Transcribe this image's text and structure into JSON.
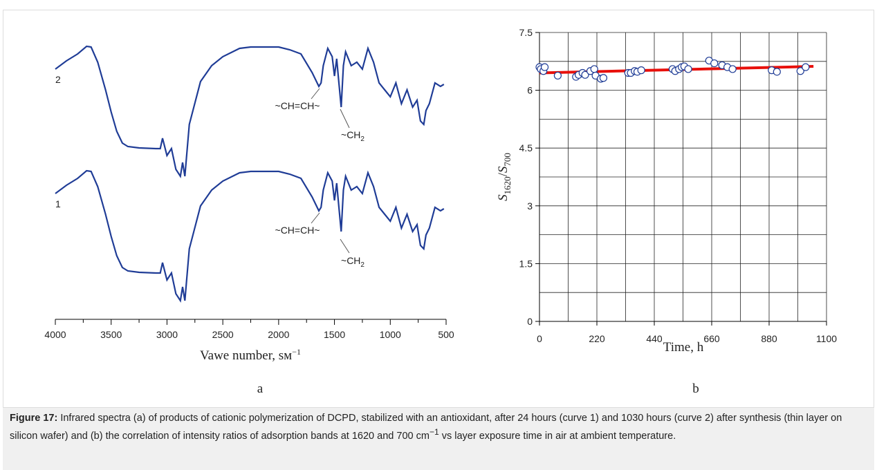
{
  "chart_data": [
    {
      "type": "line",
      "panel": "a",
      "xlabel": {
        "text": "Vawe number, sм",
        "sup": "−1"
      },
      "x": [
        4000,
        3900,
        3800,
        3720,
        3680,
        3620,
        3550,
        3500,
        3450,
        3400,
        3350,
        3250,
        3100,
        3060,
        3040,
        3000,
        2960,
        2920,
        2880,
        2860,
        2840,
        2800,
        2700,
        2600,
        2500,
        2350,
        2250,
        2100,
        2000,
        1900,
        1800,
        1700,
        1640,
        1620,
        1600,
        1560,
        1520,
        1500,
        1480,
        1460,
        1440,
        1420,
        1400,
        1350,
        1300,
        1250,
        1200,
        1150,
        1100,
        1050,
        1000,
        950,
        900,
        850,
        800,
        760,
        730,
        700,
        680,
        650,
        600,
        550,
        520
      ],
      "series": [
        {
          "name": "2",
          "color": "#1f3c96",
          "values": [
            360,
            372,
            382,
            393,
            392,
            370,
            330,
            298,
            270,
            253,
            248,
            246,
            245,
            245,
            260,
            235,
            245,
            215,
            205,
            225,
            205,
            280,
            342,
            365,
            378,
            390,
            392,
            392,
            392,
            388,
            382,
            355,
            335,
            340,
            365,
            390,
            378,
            350,
            375,
            340,
            305,
            365,
            385,
            365,
            370,
            360,
            390,
            370,
            340,
            330,
            320,
            340,
            310,
            330,
            305,
            315,
            285,
            280,
            300,
            310,
            340,
            335,
            338
          ]
        },
        {
          "name": "1",
          "color": "#1f3c96",
          "values": [
            180,
            192,
            202,
            213,
            212,
            190,
            150,
            118,
            90,
            73,
            68,
            66,
            65,
            65,
            80,
            55,
            65,
            35,
            25,
            45,
            25,
            100,
            162,
            185,
            198,
            210,
            212,
            212,
            212,
            208,
            202,
            175,
            155,
            160,
            185,
            210,
            198,
            170,
            195,
            160,
            125,
            185,
            205,
            185,
            190,
            180,
            210,
            190,
            160,
            150,
            140,
            160,
            130,
            150,
            125,
            135,
            105,
            100,
            120,
            130,
            160,
            155,
            158
          ]
        }
      ],
      "annotations": [
        {
          "text": "~CH=CH~"
        },
        {
          "text": "~CH",
          "sub": "2"
        },
        {
          "text": "~CH=CH~"
        },
        {
          "text": "~CH",
          "sub": "2"
        }
      ],
      "xlim": [
        4000,
        500
      ],
      "xticks": [
        4000,
        3500,
        3000,
        2500,
        2000,
        1500,
        1000,
        500
      ],
      "xminorticks": [
        3750,
        3250,
        2750,
        2250,
        1750,
        1250,
        750
      ],
      "ylim": [
        0,
        420
      ]
    },
    {
      "type": "scatter",
      "panel": "b",
      "xlabel": "Time, h",
      "ylabel": {
        "parts": [
          "S",
          "1620",
          "/",
          "S",
          "700"
        ]
      },
      "x": [
        0,
        5,
        15,
        20,
        70,
        140,
        150,
        165,
        175,
        195,
        210,
        215,
        235,
        245,
        340,
        350,
        365,
        375,
        390,
        510,
        520,
        535,
        545,
        555,
        570,
        650,
        670,
        700,
        720,
        740,
        890,
        910,
        1000,
        1020
      ],
      "values": [
        6.6,
        6.55,
        6.5,
        6.6,
        6.38,
        6.35,
        6.4,
        6.45,
        6.4,
        6.5,
        6.55,
        6.38,
        6.3,
        6.32,
        6.45,
        6.45,
        6.5,
        6.48,
        6.52,
        6.55,
        6.5,
        6.55,
        6.6,
        6.62,
        6.55,
        6.77,
        6.7,
        6.65,
        6.6,
        6.55,
        6.52,
        6.48,
        6.5,
        6.6
      ],
      "color": "#ffffff",
      "trend": {
        "x": [
          0,
          1050
        ],
        "values": [
          6.45,
          6.62
        ],
        "color": "#e8100b"
      },
      "xlim": [
        0,
        1100
      ],
      "xticks": [
        0,
        220,
        440,
        660,
        880,
        1100
      ],
      "xminorticks": [
        110,
        330,
        550,
        770,
        990
      ],
      "ylim": [
        0,
        7.5
      ],
      "yticks": [
        0,
        1.5,
        3,
        4.5,
        6,
        7.5
      ],
      "yminorticks": [
        0.75,
        2.25,
        3.75,
        5.25,
        6.75
      ],
      "grid": true
    }
  ],
  "caption": {
    "label": "Figure 17:",
    "text": " Infrared spectra (a) of products of cationic polymerization of DCPD, stabilized with an antioxidant, after 24 hours (curve 1) and 1030 hours (curve 2) after synthesis (thin layer on silicon wafer) and (b) the correlation of intensity ratios of adsorption bands at 1620 and 700 cm",
    "sup": "−1",
    "tail": " vs layer exposure time in air at ambient temperature."
  }
}
